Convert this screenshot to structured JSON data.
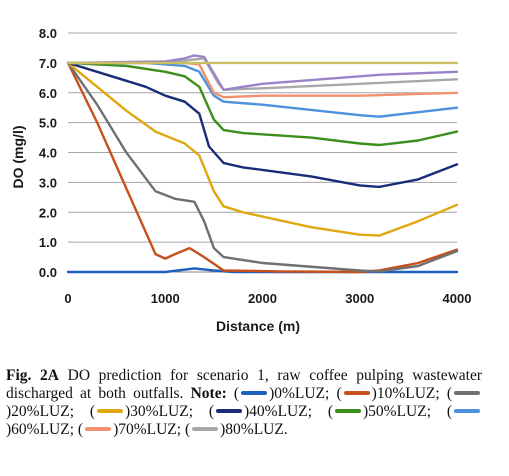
{
  "chart_data": {
    "type": "line",
    "xlabel": "Distance (m)",
    "ylabel": "DO (mg/l)",
    "xlim": [
      0,
      4000
    ],
    "ylim": [
      0,
      8
    ],
    "x_ticks": [
      "0",
      "1000",
      "2000",
      "3000",
      "4000"
    ],
    "y_ticks": [
      "0.0",
      "1.0",
      "2.0",
      "3.0",
      "4.0",
      "5.0",
      "6.0",
      "7.0",
      "8.0"
    ],
    "grid": true,
    "series": [
      {
        "name": "0%LUZ",
        "color": "#1f5fbf",
        "x": [
          0,
          1000,
          1300,
          1500,
          1700,
          4000
        ],
        "y": [
          0.0,
          0.0,
          0.12,
          0.05,
          0.0,
          0.0
        ]
      },
      {
        "name": "10%LUZ",
        "color": "#c8501a",
        "x": [
          0,
          300,
          600,
          900,
          1000,
          1100,
          1250,
          1400,
          1600,
          2200,
          3000,
          3200,
          3600,
          4000
        ],
        "y": [
          7.0,
          5.0,
          2.8,
          0.6,
          0.45,
          0.6,
          0.8,
          0.5,
          0.05,
          0.02,
          0.0,
          0.05,
          0.3,
          0.75
        ]
      },
      {
        "name": "20%LUZ",
        "color": "#707070",
        "x": [
          0,
          300,
          600,
          900,
          1100,
          1300,
          1400,
          1500,
          1600,
          2000,
          3000,
          3200,
          3600,
          4000
        ],
        "y": [
          7.0,
          5.6,
          4.0,
          2.7,
          2.45,
          2.35,
          1.7,
          0.8,
          0.5,
          0.3,
          0.05,
          0.02,
          0.2,
          0.7
        ]
      },
      {
        "name": "30%LUZ",
        "color": "#e0a810",
        "x": [
          0,
          300,
          600,
          900,
          1200,
          1350,
          1500,
          1600,
          1800,
          2500,
          3000,
          3200,
          3600,
          4000
        ],
        "y": [
          7.0,
          6.2,
          5.4,
          4.7,
          4.3,
          3.9,
          2.7,
          2.2,
          2.0,
          1.5,
          1.25,
          1.22,
          1.7,
          2.25
        ]
      },
      {
        "name": "40%LUZ",
        "color": "#1a2c78",
        "x": [
          0,
          400,
          800,
          1000,
          1200,
          1350,
          1450,
          1600,
          1800,
          2500,
          3000,
          3200,
          3600,
          4000
        ],
        "y": [
          7.0,
          6.6,
          6.2,
          5.9,
          5.7,
          5.3,
          4.2,
          3.65,
          3.5,
          3.2,
          2.9,
          2.85,
          3.1,
          3.6
        ]
      },
      {
        "name": "50%LUZ",
        "color": "#3c8f1c",
        "x": [
          0,
          600,
          1000,
          1200,
          1350,
          1500,
          1600,
          1800,
          2500,
          3000,
          3200,
          3600,
          4000
        ],
        "y": [
          7.0,
          6.9,
          6.7,
          6.55,
          6.2,
          5.1,
          4.75,
          4.65,
          4.5,
          4.3,
          4.25,
          4.4,
          4.7
        ]
      },
      {
        "name": "60%LUZ",
        "color": "#4c92dc",
        "x": [
          0,
          800,
          1200,
          1350,
          1500,
          1600,
          2000,
          3000,
          3200,
          3600,
          4000
        ],
        "y": [
          7.0,
          7.0,
          6.9,
          6.7,
          5.9,
          5.7,
          5.6,
          5.25,
          5.2,
          5.35,
          5.5
        ]
      },
      {
        "name": "70%LUZ",
        "color": "#f29070",
        "x": [
          0,
          1000,
          1200,
          1350,
          1500,
          1600,
          2000,
          3000,
          4000
        ],
        "y": [
          7.0,
          7.0,
          7.0,
          6.95,
          6.0,
          5.85,
          5.9,
          5.9,
          6.0
        ]
      },
      {
        "name": "80%LUZ",
        "color": "#a8a8a8",
        "x": [
          0,
          1000,
          1250,
          1400,
          1550,
          1600,
          2000,
          3000,
          4000
        ],
        "y": [
          7.0,
          7.0,
          7.1,
          7.15,
          6.3,
          6.1,
          6.15,
          6.3,
          6.45
        ]
      },
      {
        "name": "",
        "color": "#9a84c8",
        "x": [
          0,
          1000,
          1200,
          1300,
          1400,
          1600,
          2000,
          3000,
          3200,
          4000
        ],
        "y": [
          7.0,
          7.05,
          7.15,
          7.25,
          7.2,
          6.1,
          6.3,
          6.55,
          6.6,
          6.7
        ]
      },
      {
        "name": "",
        "color": "#c8c060",
        "x": [
          0,
          4000
        ],
        "y": [
          7.0,
          7.0
        ]
      }
    ]
  },
  "caption": {
    "fig_label": "Fig. 2A",
    "text": "DO prediction for scenario 1, raw coffee pulping wastewater discharged at both outfalls.",
    "note_label": "Note:",
    "items": [
      {
        "text": "0%LUZ;",
        "color": "#1f5fbf"
      },
      {
        "text": "10%LUZ;",
        "color": "#c8501a"
      },
      {
        "text": "20%LUZ;",
        "color": "#707070"
      },
      {
        "text": "30%LUZ;",
        "color": "#e0a810"
      },
      {
        "text": "40%LUZ;",
        "color": "#1a2c78"
      },
      {
        "text": "50%LUZ;",
        "color": "#3c8f1c"
      },
      {
        "text": "60%LUZ;",
        "color": "#4c92dc"
      },
      {
        "text": "70%LUZ;",
        "color": "#f29070"
      },
      {
        "text": "80%LUZ.",
        "color": "#a8a8a8"
      }
    ]
  }
}
